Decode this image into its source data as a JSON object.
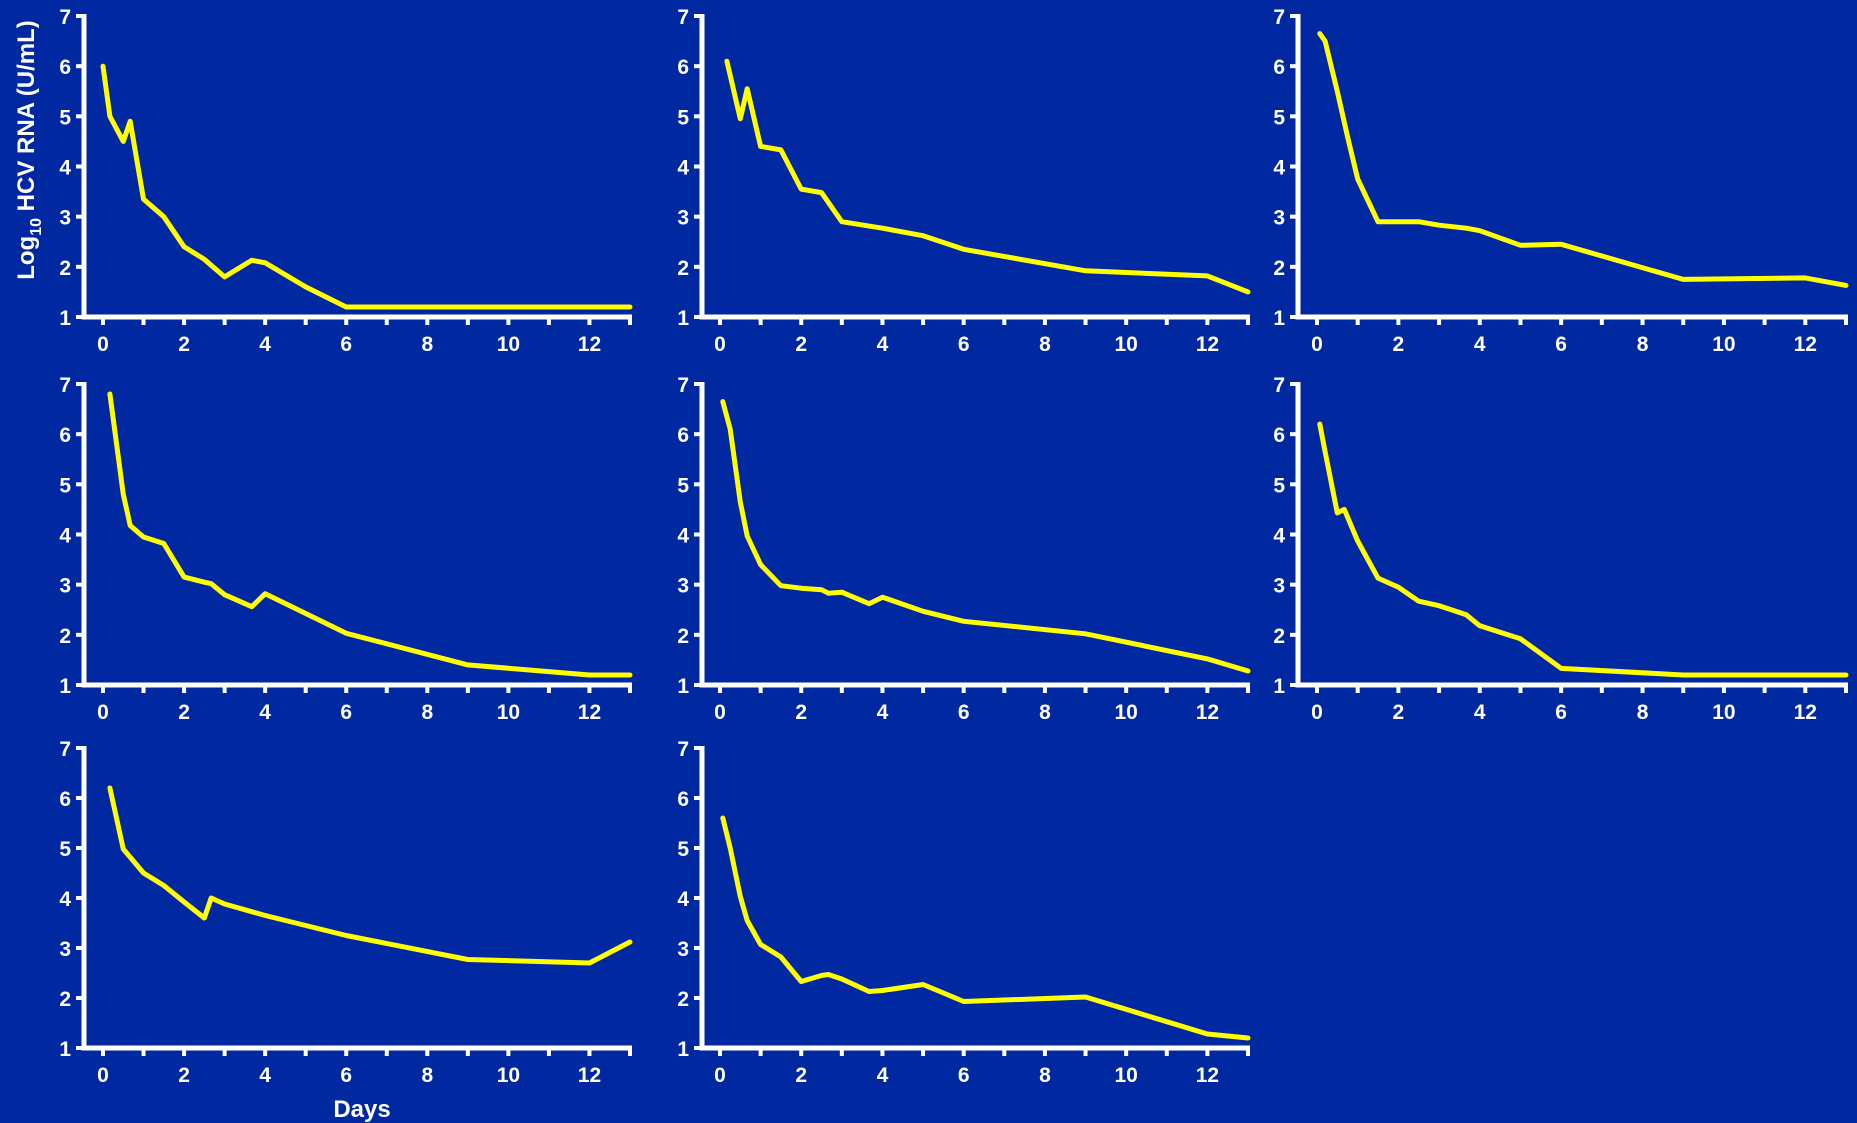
{
  "colors": {
    "background": "#0028a0",
    "axis": "#ffffff",
    "line": "#ffff00"
  },
  "y_axis_title": {
    "main": "Log",
    "sub": "10",
    "rest": " HCV RNA (U/mL)"
  },
  "x_axis_title": "Days",
  "chart_data": [
    {
      "type": "line",
      "xlim": [
        0,
        13
      ],
      "ylim": [
        1,
        7
      ],
      "xticks": [
        0,
        2,
        4,
        6,
        8,
        10,
        12
      ],
      "yticks": [
        1,
        2,
        3,
        4,
        5,
        6,
        7
      ],
      "x": [
        0,
        0.17,
        0.5,
        0.67,
        1,
        1.5,
        2,
        2.5,
        3,
        3.67,
        4,
        5,
        6,
        9,
        12,
        13
      ],
      "y": [
        6.0,
        5.0,
        4.5,
        4.9,
        3.35,
        3.0,
        2.4,
        2.15,
        1.8,
        2.13,
        2.08,
        1.6,
        1.2,
        1.2,
        1.2,
        1.2
      ]
    },
    {
      "type": "line",
      "xlim": [
        0,
        13
      ],
      "ylim": [
        1,
        7
      ],
      "xticks": [
        0,
        2,
        4,
        6,
        8,
        10,
        12
      ],
      "yticks": [
        1,
        2,
        3,
        4,
        5,
        6,
        7
      ],
      "x": [
        0.17,
        0.5,
        0.67,
        1,
        1.5,
        2,
        2.5,
        3,
        4,
        5,
        6,
        9,
        12,
        13
      ],
      "y": [
        6.1,
        4.95,
        5.55,
        4.4,
        4.33,
        3.55,
        3.48,
        2.9,
        2.77,
        2.62,
        2.35,
        1.92,
        1.82,
        1.5
      ]
    },
    {
      "type": "line",
      "xlim": [
        0,
        13
      ],
      "ylim": [
        1,
        7
      ],
      "xticks": [
        0,
        2,
        4,
        6,
        8,
        10,
        12
      ],
      "yticks": [
        1,
        2,
        3,
        4,
        5,
        6,
        7
      ],
      "x": [
        0.07,
        0.2,
        0.5,
        0.75,
        1,
        1.5,
        2,
        2.5,
        3,
        3.67,
        4,
        5,
        6,
        9,
        12,
        13
      ],
      "y": [
        6.65,
        6.5,
        5.5,
        4.6,
        3.75,
        2.9,
        2.9,
        2.9,
        2.83,
        2.77,
        2.72,
        2.43,
        2.45,
        1.75,
        1.78,
        1.63
      ]
    },
    {
      "type": "line",
      "xlim": [
        0,
        13
      ],
      "ylim": [
        1,
        7
      ],
      "xticks": [
        0,
        2,
        4,
        6,
        8,
        10,
        12
      ],
      "yticks": [
        1,
        2,
        3,
        4,
        5,
        6,
        7
      ],
      "x": [
        0.17,
        0.5,
        0.67,
        1,
        1.5,
        2,
        2.5,
        2.67,
        3,
        3.67,
        4,
        6,
        9,
        12,
        13
      ],
      "y": [
        6.8,
        4.8,
        4.18,
        3.95,
        3.82,
        3.15,
        3.05,
        3.02,
        2.8,
        2.56,
        2.82,
        2.03,
        1.4,
        1.2,
        1.2
      ]
    },
    {
      "type": "line",
      "xlim": [
        0,
        13
      ],
      "ylim": [
        1,
        7
      ],
      "xticks": [
        0,
        2,
        4,
        6,
        8,
        10,
        12
      ],
      "yticks": [
        1,
        2,
        3,
        4,
        5,
        6,
        7
      ],
      "x": [
        0.07,
        0.25,
        0.5,
        0.67,
        1,
        1.5,
        2,
        2.5,
        2.67,
        3,
        3.67,
        4,
        5,
        6,
        9,
        12,
        13
      ],
      "y": [
        6.65,
        6.1,
        4.65,
        3.97,
        3.4,
        2.98,
        2.93,
        2.9,
        2.83,
        2.85,
        2.62,
        2.75,
        2.47,
        2.27,
        2.02,
        1.52,
        1.28
      ]
    },
    {
      "type": "line",
      "xlim": [
        0,
        13
      ],
      "ylim": [
        1,
        7
      ],
      "xticks": [
        0,
        2,
        4,
        6,
        8,
        10,
        12
      ],
      "yticks": [
        1,
        2,
        3,
        4,
        5,
        6,
        7
      ],
      "x": [
        0.07,
        0.2,
        0.5,
        0.67,
        1,
        1.5,
        2,
        2.5,
        3,
        3.67,
        4,
        5,
        6,
        9,
        12,
        13
      ],
      "y": [
        6.2,
        5.65,
        4.43,
        4.5,
        3.87,
        3.13,
        2.95,
        2.67,
        2.58,
        2.4,
        2.18,
        1.92,
        1.33,
        1.2,
        1.2,
        1.2
      ]
    },
    {
      "type": "line",
      "xlim": [
        0,
        13
      ],
      "ylim": [
        1,
        7
      ],
      "xticks": [
        0,
        2,
        4,
        6,
        8,
        10,
        12
      ],
      "yticks": [
        1,
        2,
        3,
        4,
        5,
        6,
        7
      ],
      "x": [
        0.17,
        0.5,
        1,
        1.5,
        2,
        2.5,
        2.67,
        3,
        4,
        6,
        9,
        12,
        13
      ],
      "y": [
        6.2,
        4.98,
        4.5,
        4.25,
        3.92,
        3.6,
        4.0,
        3.88,
        3.65,
        3.25,
        2.77,
        2.7,
        3.12
      ]
    },
    {
      "type": "line",
      "xlim": [
        0,
        13
      ],
      "ylim": [
        1,
        7
      ],
      "xticks": [
        0,
        2,
        4,
        6,
        8,
        10,
        12
      ],
      "yticks": [
        1,
        2,
        3,
        4,
        5,
        6,
        7
      ],
      "x": [
        0.07,
        0.25,
        0.5,
        0.67,
        1,
        1.5,
        2,
        2.5,
        2.67,
        3,
        3.67,
        4,
        5,
        6,
        9,
        12,
        13
      ],
      "y": [
        5.6,
        5.0,
        4.03,
        3.55,
        3.07,
        2.82,
        2.33,
        2.45,
        2.47,
        2.38,
        2.13,
        2.15,
        2.27,
        1.93,
        2.02,
        1.28,
        1.2
      ]
    }
  ]
}
